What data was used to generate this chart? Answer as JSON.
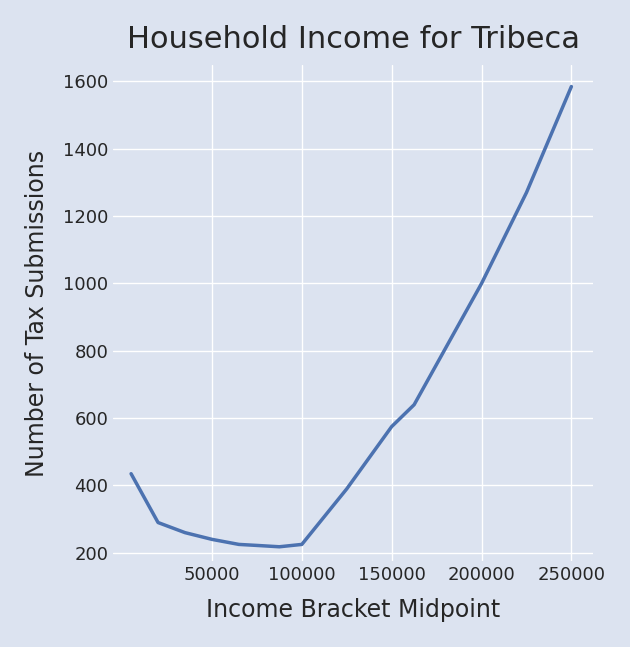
{
  "title": "Household Income for Tribeca",
  "xlabel": "Income Bracket Midpoint",
  "ylabel": "Number of Tax Submissions",
  "x": [
    5000,
    20000,
    35000,
    50000,
    65000,
    75000,
    87500,
    100000,
    125000,
    150000,
    162500,
    175000,
    200000,
    225000,
    250000
  ],
  "y": [
    435,
    290,
    260,
    240,
    225,
    222,
    218,
    225,
    390,
    575,
    640,
    760,
    1000,
    1270,
    1585
  ],
  "line_color": "#4c72b0",
  "bg_color": "#dce3f0",
  "figure_bg": "#dce3f0",
  "line_width": 2.5,
  "title_fontsize": 22,
  "label_fontsize": 17,
  "tick_fontsize": 13,
  "ylim": [
    175,
    1650
  ],
  "xlim": [
    -5000,
    262000
  ],
  "yticks": [
    200,
    400,
    600,
    800,
    1000,
    1200,
    1400,
    1600
  ],
  "xticks": [
    50000,
    100000,
    150000,
    200000,
    250000
  ],
  "grid_color": "#ffffff",
  "grid_linewidth": 1.0
}
